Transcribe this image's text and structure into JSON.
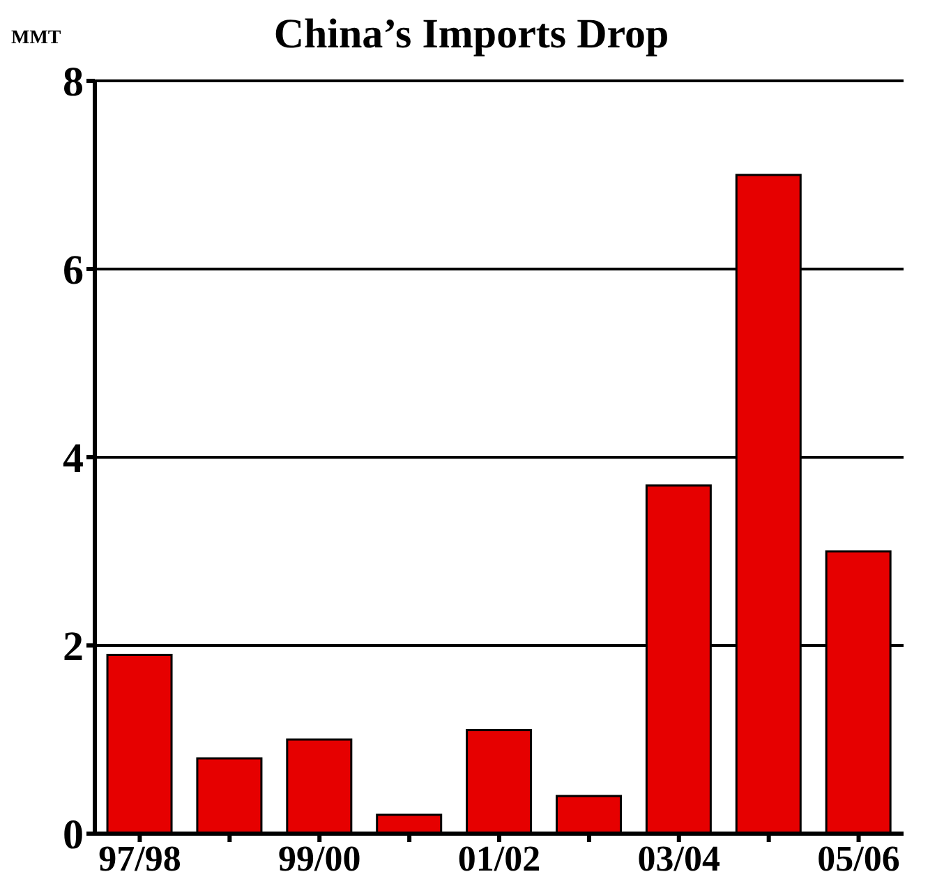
{
  "chart_data": {
    "type": "bar",
    "title": "China’s Imports Drop",
    "ylabel": "MMT",
    "categories": [
      "97/98",
      null,
      "99/00",
      null,
      "01/02",
      null,
      "03/04",
      null,
      "05/06"
    ],
    "values": [
      1.9,
      0.8,
      1.0,
      0.2,
      1.1,
      0.4,
      3.7,
      7.0,
      3.0
    ],
    "color": "#e60000",
    "ylim": [
      0,
      8
    ],
    "yticks": [
      0,
      2,
      4,
      6,
      8
    ],
    "grid": "y"
  }
}
